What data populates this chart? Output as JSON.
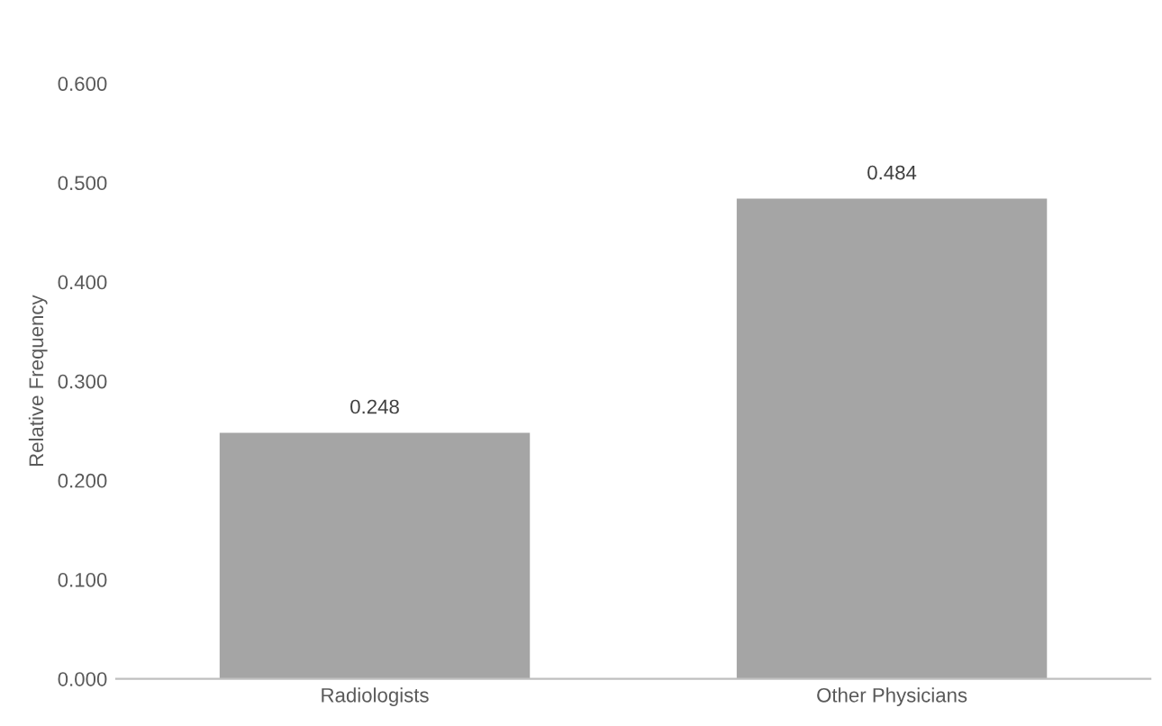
{
  "chart_data": {
    "type": "bar",
    "ylabel": "Relative Frequency",
    "categories": [
      "Radiologists",
      "Other Physicians"
    ],
    "values": [
      0.248,
      0.484
    ],
    "color": "#a5a5a5",
    "ylim": [
      0,
      0.6
    ],
    "yticks": [
      {
        "value": 0,
        "label": "0.000"
      },
      {
        "value": 0.1,
        "label": "0.100"
      },
      {
        "value": 0.2,
        "label": "0.200"
      },
      {
        "value": 0.3,
        "label": "0.300"
      },
      {
        "value": 0.4,
        "label": "0.400"
      },
      {
        "value": 0.5,
        "label": "0.500"
      },
      {
        "value": 0.6,
        "label": "0.600"
      }
    ],
    "data_labels": true,
    "grid": false,
    "legend": false
  }
}
